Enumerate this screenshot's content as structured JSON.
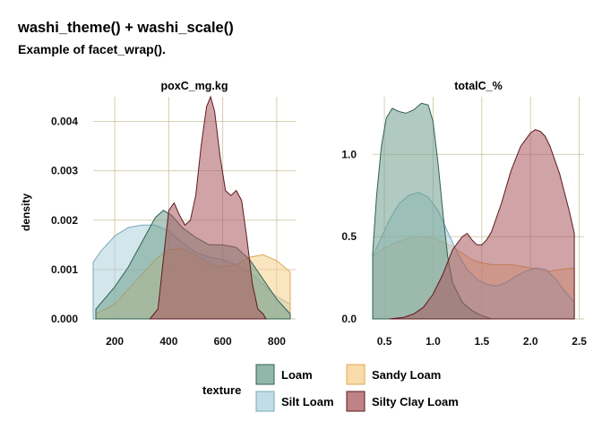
{
  "header": {
    "title": "washi_theme() + washi_scale()",
    "subtitle": "Example of facet_wrap()."
  },
  "chart_data": {
    "type": "area",
    "ylabel": "density",
    "legend": {
      "title": "texture",
      "placement": "bottom"
    },
    "series_styles": [
      {
        "name": "Loam",
        "fill": "#6f9e8e",
        "stroke": "#2f6150"
      },
      {
        "name": "Silt Loam",
        "fill": "#aed2dc",
        "stroke": "#77a9ba"
      },
      {
        "name": "Sandy Loam",
        "fill": "#f6cf8e",
        "stroke": "#e0a94f"
      },
      {
        "name": "Silty Clay Loam",
        "fill": "#a9585f",
        "stroke": "#5e1a20"
      }
    ],
    "panels": [
      {
        "strip": "poxC_mg.kg",
        "xlim": [
          120,
          870
        ],
        "ylim": [
          0,
          0.0045
        ],
        "xticks": [
          200,
          400,
          600,
          800
        ],
        "xtick_labels": [
          "200",
          "400",
          "600",
          "800"
        ],
        "yticks": [
          0,
          0.001,
          0.002,
          0.003,
          0.004
        ],
        "ytick_labels": [
          "0.000",
          "0.001",
          "0.002",
          "0.003",
          "0.004"
        ],
        "series": [
          {
            "name": "Silt Loam",
            "x": [
              120,
              150,
              200,
              250,
              300,
              350,
              400,
              450,
              500,
              550,
              600,
              650,
              700,
              750,
              800,
              850
            ],
            "y": [
              0.00115,
              0.00138,
              0.00168,
              0.00185,
              0.0019,
              0.0019,
              0.00178,
              0.00155,
              0.00135,
              0.00125,
              0.0012,
              0.0011,
              0.00095,
              0.0007,
              0.00045,
              0.0003
            ]
          },
          {
            "name": "Sandy Loam",
            "x": [
              130,
              200,
              250,
              300,
              350,
              400,
              450,
              500,
              550,
              600,
              650,
              700,
              750,
              800,
              850
            ],
            "y": [
              0.0001,
              0.0003,
              0.0006,
              0.0009,
              0.0012,
              0.0014,
              0.00142,
              0.0013,
              0.0011,
              0.00105,
              0.0011,
              0.00125,
              0.0013,
              0.00118,
              0.00095
            ]
          },
          {
            "name": "Loam",
            "x": [
              130,
              200,
              250,
              300,
              350,
              380,
              410,
              450,
              500,
              550,
              600,
              650,
              700,
              750,
              800,
              850
            ],
            "y": [
              0.0002,
              0.00065,
              0.00105,
              0.00155,
              0.00205,
              0.0022,
              0.0021,
              0.00185,
              0.00165,
              0.0015,
              0.0015,
              0.00145,
              0.0012,
              0.0008,
              0.0004,
              0.0001
            ]
          },
          {
            "name": "Silty Clay Loam",
            "x": [
              330,
              360,
              380,
              400,
              420,
              440,
              460,
              480,
              500,
              520,
              540,
              555,
              570,
              590,
              610,
              630,
              650,
              670,
              690,
              710,
              730,
              750,
              760
            ],
            "y": [
              0.0,
              0.0002,
              0.0012,
              0.0022,
              0.00235,
              0.0021,
              0.0019,
              0.002,
              0.0025,
              0.0035,
              0.0043,
              0.0045,
              0.0042,
              0.0033,
              0.0026,
              0.0025,
              0.0026,
              0.0024,
              0.0016,
              0.0007,
              0.0002,
              0.0001,
              0.0
            ]
          }
        ]
      },
      {
        "strip": "totalC_%",
        "xlim": [
          0.38,
          2.55
        ],
        "ylim": [
          0,
          1.35
        ],
        "xticks": [
          0.5,
          1.0,
          1.5,
          2.0,
          2.5
        ],
        "xtick_labels": [
          "0.5",
          "1.0",
          "1.5",
          "2.0",
          "2.5"
        ],
        "yticks": [
          0,
          0.5,
          1.0
        ],
        "ytick_labels": [
          "0.0",
          "0.5",
          "1.0"
        ],
        "series": [
          {
            "name": "Sandy Loam",
            "x": [
              0.38,
              0.5,
              0.6,
              0.7,
              0.8,
              0.9,
              1.0,
              1.1,
              1.2,
              1.3,
              1.4,
              1.5,
              1.6,
              1.7,
              1.8,
              1.9,
              2.0,
              2.1,
              2.2,
              2.3,
              2.45
            ],
            "y": [
              0.38,
              0.43,
              0.46,
              0.48,
              0.5,
              0.5,
              0.49,
              0.47,
              0.44,
              0.4,
              0.36,
              0.34,
              0.33,
              0.33,
              0.33,
              0.32,
              0.31,
              0.3,
              0.29,
              0.3,
              0.31
            ]
          },
          {
            "name": "Silt Loam",
            "x": [
              0.38,
              0.45,
              0.55,
              0.65,
              0.75,
              0.85,
              0.95,
              1.05,
              1.15,
              1.25,
              1.35,
              1.45,
              1.55,
              1.65,
              1.75,
              1.85,
              1.95,
              2.05,
              2.15,
              2.25,
              2.35,
              2.45
            ],
            "y": [
              0.38,
              0.47,
              0.6,
              0.7,
              0.75,
              0.77,
              0.74,
              0.66,
              0.53,
              0.4,
              0.3,
              0.24,
              0.21,
              0.2,
              0.22,
              0.26,
              0.29,
              0.31,
              0.3,
              0.25,
              0.17,
              0.1
            ]
          },
          {
            "name": "Loam",
            "x": [
              0.38,
              0.42,
              0.47,
              0.52,
              0.58,
              0.65,
              0.72,
              0.8,
              0.88,
              0.95,
              1.0,
              1.05,
              1.1,
              1.15,
              1.2,
              1.3,
              1.4,
              1.5,
              1.6,
              1.7,
              1.8,
              1.9,
              2.0,
              2.1,
              2.2,
              2.3,
              2.45
            ],
            "y": [
              0.4,
              0.75,
              1.05,
              1.22,
              1.28,
              1.26,
              1.25,
              1.27,
              1.31,
              1.3,
              1.2,
              0.95,
              0.65,
              0.38,
              0.22,
              0.1,
              0.05,
              0.02,
              0.0,
              0.0,
              0.0,
              0.0,
              0.0,
              0.0,
              0.0,
              0.0,
              0.0
            ]
          },
          {
            "name": "Silty Clay Loam",
            "x": [
              0.55,
              0.7,
              0.8,
              0.9,
              1.0,
              1.1,
              1.2,
              1.3,
              1.35,
              1.4,
              1.45,
              1.5,
              1.55,
              1.6,
              1.7,
              1.8,
              1.9,
              2.0,
              2.05,
              2.1,
              2.15,
              2.2,
              2.3,
              2.4,
              2.45
            ],
            "y": [
              0.0,
              0.01,
              0.03,
              0.07,
              0.15,
              0.27,
              0.42,
              0.5,
              0.52,
              0.48,
              0.45,
              0.45,
              0.48,
              0.53,
              0.7,
              0.9,
              1.05,
              1.13,
              1.15,
              1.14,
              1.11,
              1.05,
              0.88,
              0.65,
              0.52
            ]
          }
        ]
      }
    ]
  }
}
